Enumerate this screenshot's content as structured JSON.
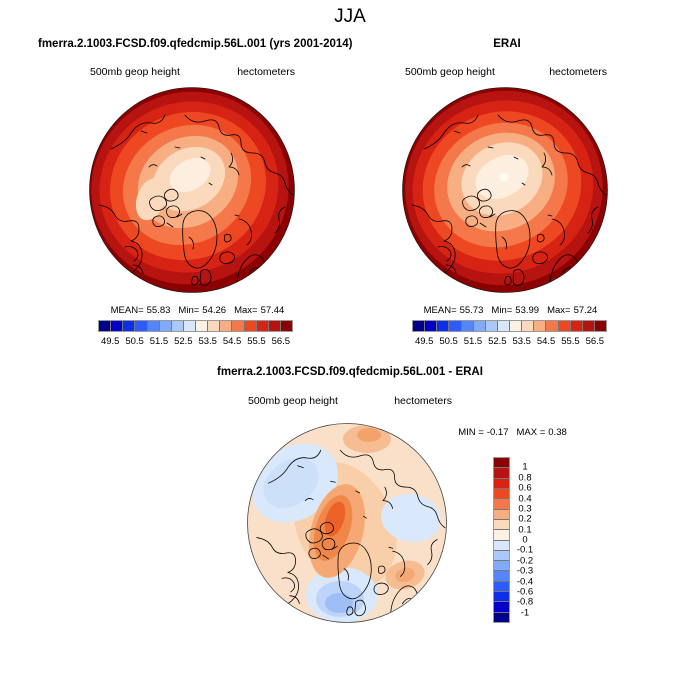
{
  "page_title": "JJA",
  "palette_blue_to_red": [
    "#00008B",
    "#0000C8",
    "#0D2FEA",
    "#2E5BFF",
    "#5585F8",
    "#82AAFA",
    "#ABC8FA",
    "#D8E7FB",
    "#FDF1E4",
    "#FBD9BD",
    "#F7AE83",
    "#F4784A",
    "#EE4822",
    "#D62314",
    "#B61311",
    "#8B0000"
  ],
  "panels": {
    "model": {
      "title": "fmerra.2.1003.FCSD.f09.qfedcmip.56L.001 (yrs 2001-2014)",
      "field_label": "500mb geop height",
      "units_label": "hectometers",
      "stats": {
        "mean_label": "MEAN=",
        "mean": "55.83",
        "min_label": "Min=",
        "min": "54.26",
        "max_label": "Max=",
        "max": "57.44"
      },
      "colorbar_ticks": [
        "49.5",
        "50.5",
        "51.5",
        "52.5",
        "53.5",
        "54.5",
        "55.5",
        "56.5"
      ]
    },
    "reference": {
      "title": "ERAI",
      "field_label": "500mb geop height",
      "units_label": "hectometers",
      "stats": {
        "mean_label": "MEAN=",
        "mean": "55.73",
        "min_label": "Min=",
        "min": "53.99",
        "max_label": "Max=",
        "max": "57.24"
      },
      "colorbar_ticks": [
        "49.5",
        "50.5",
        "51.5",
        "52.5",
        "53.5",
        "54.5",
        "55.5",
        "56.5"
      ]
    },
    "difference": {
      "title": "fmerra.2.1003.FCSD.f09.qfedcmip.56L.001 - ERAI",
      "field_label": "500mb geop height",
      "units_label": "hectometers",
      "stats": {
        "min_label": "MIN =",
        "min": "-0.17",
        "max_label": "MAX =",
        "max": "0.38"
      },
      "colorbar_ticks": [
        "1",
        "0.8",
        "0.6",
        "0.4",
        "0.3",
        "0.2",
        "0.1",
        "0",
        "-0.1",
        "-0.2",
        "-0.3",
        "-0.4",
        "-0.6",
        "-0.8",
        "-1"
      ]
    }
  },
  "chart_data": [
    {
      "type": "heatmap",
      "subtype": "polar_stereographic_filled_contour_map",
      "season": "JJA",
      "title": "fmerra.2.1003.FCSD.f09.qfedcmip.56L.001 (yrs 2001-2014)",
      "field": "500mb geop height",
      "units": "hectometers",
      "projection": "north polar stereographic",
      "stats": {
        "mean": 55.83,
        "min": 54.26,
        "max": 57.44
      },
      "colorbar_tick_values": [
        49.5,
        50.5,
        51.5,
        52.5,
        53.5,
        54.5,
        55.5,
        56.5
      ],
      "contour_interval": 0.5,
      "n_color_levels": 16,
      "palette": "blue-to-red diverging, 16 levels",
      "legend_position": "below",
      "pattern": "high values (dark red, >56.5) around map rim grading to low values (light cream, ~54) near the pole; lightest area slightly offset toward the pole/Canadian Arctic"
    },
    {
      "type": "heatmap",
      "subtype": "polar_stereographic_filled_contour_map",
      "season": "JJA",
      "title": "ERAI",
      "field": "500mb geop height",
      "units": "hectometers",
      "projection": "north polar stereographic",
      "stats": {
        "mean": 55.73,
        "min": 53.99,
        "max": 57.24
      },
      "colorbar_tick_values": [
        49.5,
        50.5,
        51.5,
        52.5,
        53.5,
        54.5,
        55.5,
        56.5
      ],
      "contour_interval": 0.5,
      "n_color_levels": 16,
      "palette": "blue-to-red diverging, 16 levels",
      "legend_position": "below",
      "pattern": "same structure as model panel with a slightly larger light central minimum and a small lighter spot at the pole"
    },
    {
      "type": "heatmap",
      "subtype": "polar_stereographic_difference_map",
      "season": "JJA",
      "title": "fmerra.2.1003.FCSD.f09.qfedcmip.56L.001 - ERAI",
      "field": "500mb geop height",
      "units": "hectometers",
      "projection": "north polar stereographic",
      "stats": {
        "min": -0.17,
        "max": 0.38
      },
      "colorbar_tick_values": [
        1,
        0.8,
        0.6,
        0.4,
        0.3,
        0.2,
        0.1,
        0,
        -0.1,
        -0.2,
        -0.3,
        -0.4,
        -0.6,
        -0.8,
        -1
      ],
      "n_color_levels": 16,
      "palette": "blue-to-red diverging, 16 levels, red at top of vertical bar",
      "legend_position": "right",
      "pattern": "mostly weak positive (pale orange) differences; strongest positive blob (~0.3-0.4) over Canadian Arctic/Greenland; weak negative (pale blue) patches over Siberia side, mid-right, and a blue minimum near UK/Scandinavia at bottom"
    }
  ]
}
